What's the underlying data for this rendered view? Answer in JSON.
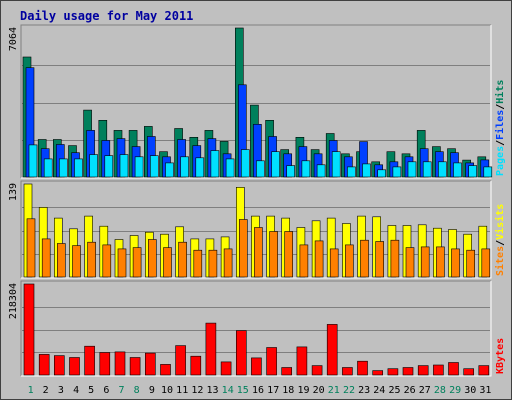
{
  "title": "Daily usage for May 2011",
  "colors": {
    "hits": "#00805c",
    "files": "#0040ff",
    "pages": "#00e0ff",
    "visits": "#ffff00",
    "sites": "#ff8000",
    "kbytes": "#ff0000",
    "weekday_label": "#000000",
    "weekend_label": "#00805c"
  },
  "chart_data": [
    {
      "type": "bar",
      "title": "Daily usage for May 2011",
      "panel": "top",
      "y_label": "7064",
      "ylim": [
        0,
        7064
      ],
      "legend_right": [
        {
          "text": "Pages",
          "color": "#00e0ff"
        },
        {
          "text": "/",
          "color": "#000000"
        },
        {
          "text": "Files",
          "color": "#0040ff"
        },
        {
          "text": "/",
          "color": "#000000"
        },
        {
          "text": "Hits",
          "color": "#00805c"
        }
      ],
      "categories": [
        "1",
        "2",
        "3",
        "4",
        "5",
        "6",
        "7",
        "8",
        "9",
        "10",
        "11",
        "12",
        "13",
        "14",
        "15",
        "16",
        "17",
        "18",
        "19",
        "20",
        "21",
        "22",
        "23",
        "24",
        "25",
        "26",
        "27",
        "28",
        "29",
        "30",
        "31"
      ],
      "series": [
        {
          "name": "Hits",
          "values": [
            5690,
            1780,
            1780,
            1490,
            3170,
            2690,
            2210,
            2210,
            2400,
            1200,
            2300,
            1880,
            2210,
            1690,
            7064,
            3410,
            2690,
            1300,
            1880,
            1300,
            2060,
            1100,
            1200,
            720,
            1200,
            1100,
            2210,
            1440,
            1340,
            800,
            960
          ]
        },
        {
          "name": "Files",
          "values": [
            5180,
            1340,
            1540,
            1150,
            2210,
            1730,
            1820,
            1440,
            1920,
            960,
            1780,
            1490,
            1820,
            1100,
            4370,
            2500,
            1920,
            1100,
            1440,
            1100,
            1730,
            960,
            1680,
            580,
            720,
            960,
            1340,
            1200,
            1150,
            670,
            810
          ]
        },
        {
          "name": "Pages",
          "values": [
            1520,
            860,
            860,
            860,
            1060,
            1010,
            1060,
            960,
            1010,
            670,
            960,
            910,
            1250,
            860,
            1300,
            770,
            1200,
            540,
            770,
            580,
            1200,
            480,
            620,
            340,
            480,
            720,
            720,
            720,
            670,
            540,
            480
          ]
        }
      ]
    },
    {
      "type": "bar",
      "panel": "middle",
      "y_label": "139",
      "ylim": [
        0,
        139
      ],
      "legend_right": [
        {
          "text": "Sites",
          "color": "#ff8000"
        },
        {
          "text": "/",
          "color": "#000000"
        },
        {
          "text": "Visits",
          "color": "#ffff00"
        }
      ],
      "categories": [
        "1",
        "2",
        "3",
        "4",
        "5",
        "6",
        "7",
        "8",
        "9",
        "10",
        "11",
        "12",
        "13",
        "14",
        "15",
        "16",
        "17",
        "18",
        "19",
        "20",
        "21",
        "22",
        "23",
        "24",
        "25",
        "26",
        "27",
        "28",
        "29",
        "30",
        "31"
      ],
      "series": [
        {
          "name": "Visits",
          "values": [
            139,
            104,
            88,
            72,
            91,
            76,
            56,
            62,
            67,
            64,
            75,
            57,
            57,
            60,
            134,
            91,
            91,
            88,
            74,
            84,
            88,
            80,
            91,
            90,
            77,
            77,
            78,
            73,
            71,
            64,
            76
          ]
        },
        {
          "name": "Sites",
          "values": [
            87,
            57,
            50,
            47,
            52,
            48,
            42,
            44,
            56,
            44,
            52,
            40,
            40,
            42,
            86,
            74,
            68,
            68,
            48,
            54,
            42,
            48,
            55,
            53,
            55,
            44,
            45,
            45,
            42,
            40,
            42
          ]
        }
      ]
    },
    {
      "type": "bar",
      "panel": "bottom",
      "y_label": "218304",
      "ylim": [
        0,
        218304
      ],
      "legend_right": [
        {
          "text": "KBytes",
          "color": "#ff0000"
        }
      ],
      "categories": [
        "1",
        "2",
        "3",
        "4",
        "5",
        "6",
        "7",
        "8",
        "9",
        "10",
        "11",
        "12",
        "13",
        "14",
        "15",
        "16",
        "17",
        "18",
        "19",
        "20",
        "21",
        "22",
        "23",
        "24",
        "25",
        "26",
        "27",
        "28",
        "29",
        "30",
        "31"
      ],
      "series": [
        {
          "name": "KBytes",
          "values": [
            218304,
            49500,
            46500,
            42000,
            69000,
            54000,
            55500,
            42000,
            52500,
            25500,
            70500,
            45000,
            124500,
            31500,
            106500,
            41000,
            66000,
            18000,
            67500,
            22500,
            121500,
            18000,
            33000,
            10500,
            15000,
            18000,
            22500,
            24000,
            30000,
            15000,
            22500
          ]
        }
      ]
    }
  ],
  "x_axis": {
    "labels": [
      "1",
      "2",
      "3",
      "4",
      "5",
      "6",
      "7",
      "8",
      "9",
      "10",
      "11",
      "12",
      "13",
      "14",
      "15",
      "16",
      "17",
      "18",
      "19",
      "20",
      "21",
      "22",
      "23",
      "24",
      "25",
      "26",
      "27",
      "28",
      "29",
      "30",
      "31"
    ],
    "weekend_days": [
      "1",
      "7",
      "8",
      "14",
      "15",
      "21",
      "22",
      "28",
      "29"
    ]
  }
}
